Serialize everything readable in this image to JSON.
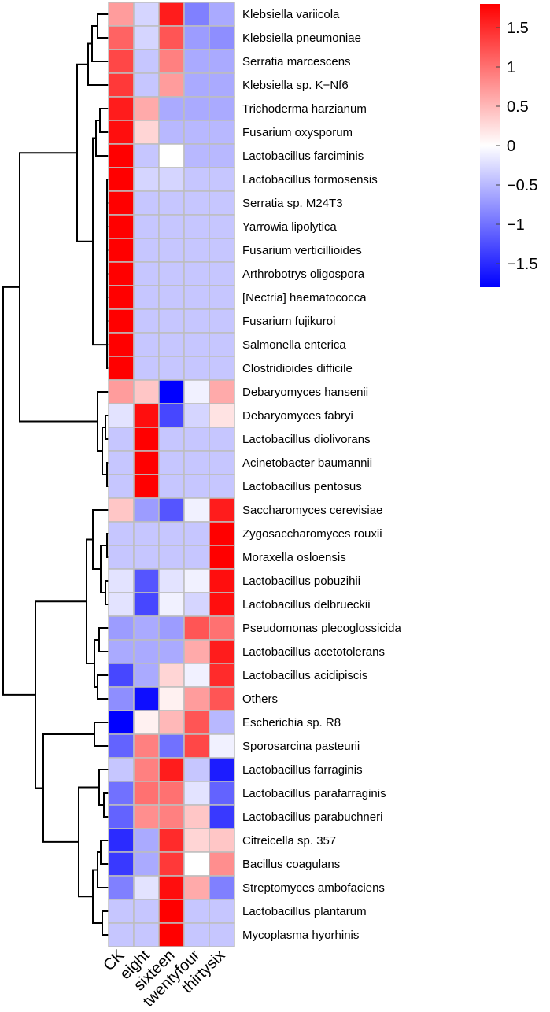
{
  "chart_data": {
    "type": "heatmap",
    "title": "",
    "columns": [
      "CK",
      "eight",
      "sixteen",
      "twentyfour",
      "thirtysix"
    ],
    "rows": [
      "Klebsiella variicola",
      "Klebsiella pneumoniae",
      "Serratia marcescens",
      "Klebsiella sp. K−Nf6",
      "Trichoderma harzianum",
      "Fusarium oxysporum",
      "Lactobacillus farciminis",
      "Lactobacillus formosensis",
      "Serratia sp. M24T3",
      "Yarrowia lipolytica",
      "Fusarium verticillioides",
      "Arthrobotrys oligospora",
      "[Nectria] haematococca",
      "Fusarium fujikuroi",
      "Salmonella enterica",
      "Clostridioides difficile",
      "Debaryomyces hansenii",
      "Debaryomyces fabryi",
      "Lactobacillus diolivorans",
      "Acinetobacter baumannii",
      "Lactobacillus pentosus",
      "Saccharomyces cerevisiae",
      "Zygosaccharomyces rouxii",
      "Moraxella osloensis",
      "Lactobacillus pobuzihii",
      "Lactobacillus delbrueckii",
      "Pseudomonas plecoglossicida",
      "Lactobacillus acetotolerans",
      "Lactobacillus acidipiscis",
      "Others",
      "Escherichia sp. R8",
      "Sporosarcina pasteurii",
      "Lactobacillus farraginis",
      "Lactobacillus parafarraginis",
      "Lactobacillus parabuchneri",
      "Citreicella sp. 357",
      "Bacillus coagulans",
      "Streptomyces ambofaciens",
      "Lactobacillus plantarum",
      "Mycoplasma hyorhinis"
    ],
    "values": [
      [
        0.7,
        -0.3,
        1.6,
        -0.9,
        -0.6
      ],
      [
        1.1,
        -0.3,
        1.2,
        -0.7,
        -0.8
      ],
      [
        1.3,
        -0.4,
        0.9,
        -0.6,
        -0.6
      ],
      [
        1.4,
        -0.4,
        0.7,
        -0.6,
        -0.6
      ],
      [
        1.6,
        0.6,
        -0.6,
        -0.6,
        -0.6
      ],
      [
        1.7,
        0.3,
        -0.5,
        -0.5,
        -0.5
      ],
      [
        1.8,
        -0.4,
        0.0,
        -0.5,
        -0.5
      ],
      [
        1.8,
        -0.3,
        -0.3,
        -0.4,
        -0.4
      ],
      [
        1.8,
        -0.4,
        -0.4,
        -0.4,
        -0.4
      ],
      [
        1.8,
        -0.4,
        -0.4,
        -0.4,
        -0.4
      ],
      [
        1.8,
        -0.4,
        -0.4,
        -0.4,
        -0.4
      ],
      [
        1.8,
        -0.4,
        -0.4,
        -0.4,
        -0.4
      ],
      [
        1.8,
        -0.4,
        -0.4,
        -0.4,
        -0.4
      ],
      [
        1.8,
        -0.4,
        -0.4,
        -0.4,
        -0.4
      ],
      [
        1.8,
        -0.4,
        -0.4,
        -0.4,
        -0.4
      ],
      [
        1.8,
        -0.4,
        -0.4,
        -0.4,
        -0.4
      ],
      [
        0.7,
        0.4,
        -1.8,
        -0.1,
        0.6
      ],
      [
        -0.2,
        1.7,
        -1.3,
        -0.3,
        0.2
      ],
      [
        -0.4,
        1.8,
        -0.4,
        -0.4,
        -0.4
      ],
      [
        -0.4,
        1.8,
        -0.4,
        -0.4,
        -0.4
      ],
      [
        -0.4,
        1.8,
        -0.4,
        -0.4,
        -0.4
      ],
      [
        0.4,
        -0.7,
        -1.2,
        -0.1,
        1.6
      ],
      [
        -0.4,
        -0.4,
        -0.4,
        -0.4,
        1.8
      ],
      [
        -0.4,
        -0.4,
        -0.4,
        -0.4,
        1.8
      ],
      [
        -0.2,
        -1.2,
        -0.2,
        -0.1,
        1.7
      ],
      [
        -0.2,
        -1.3,
        -0.1,
        -0.3,
        1.7
      ],
      [
        -0.7,
        -0.6,
        -0.7,
        1.2,
        1.0
      ],
      [
        -0.6,
        -0.6,
        -0.6,
        0.6,
        1.6
      ],
      [
        -1.3,
        -0.6,
        0.3,
        -0.1,
        1.5
      ],
      [
        -0.8,
        -1.7,
        0.1,
        0.7,
        1.2
      ],
      [
        -1.8,
        0.1,
        0.5,
        1.2,
        -0.5
      ],
      [
        -1.1,
        0.9,
        -1.0,
        1.3,
        -0.1
      ],
      [
        -0.4,
        0.9,
        1.6,
        -0.4,
        -1.6
      ],
      [
        -1.0,
        1.0,
        1.0,
        -0.2,
        -1.1
      ],
      [
        -1.1,
        0.8,
        0.9,
        0.4,
        -1.4
      ],
      [
        -1.5,
        -0.6,
        1.5,
        0.3,
        0.4
      ],
      [
        -1.4,
        -0.6,
        1.4,
        0.0,
        0.8
      ],
      [
        -0.9,
        -0.2,
        1.7,
        0.6,
        -0.9
      ],
      [
        -0.4,
        -0.4,
        1.8,
        -0.4,
        -0.4
      ],
      [
        -0.4,
        -0.4,
        1.8,
        -0.4,
        -0.4
      ]
    ],
    "colorbar": {
      "range": [
        -1.8,
        1.8
      ],
      "colors": {
        "low": "#0000ff",
        "mid": "#ffffff",
        "high": "#ff0000"
      },
      "ticks": [
        1.5,
        1,
        0.5,
        0,
        -0.5,
        -1,
        -1.5
      ],
      "tick_labels": [
        "1.5",
        "1",
        "0.5",
        "0",
        "−0.5",
        "−1",
        "−1.5"
      ]
    },
    "dendrogram": "row clustering tree (left side)",
    "legend_position": "top-right"
  }
}
